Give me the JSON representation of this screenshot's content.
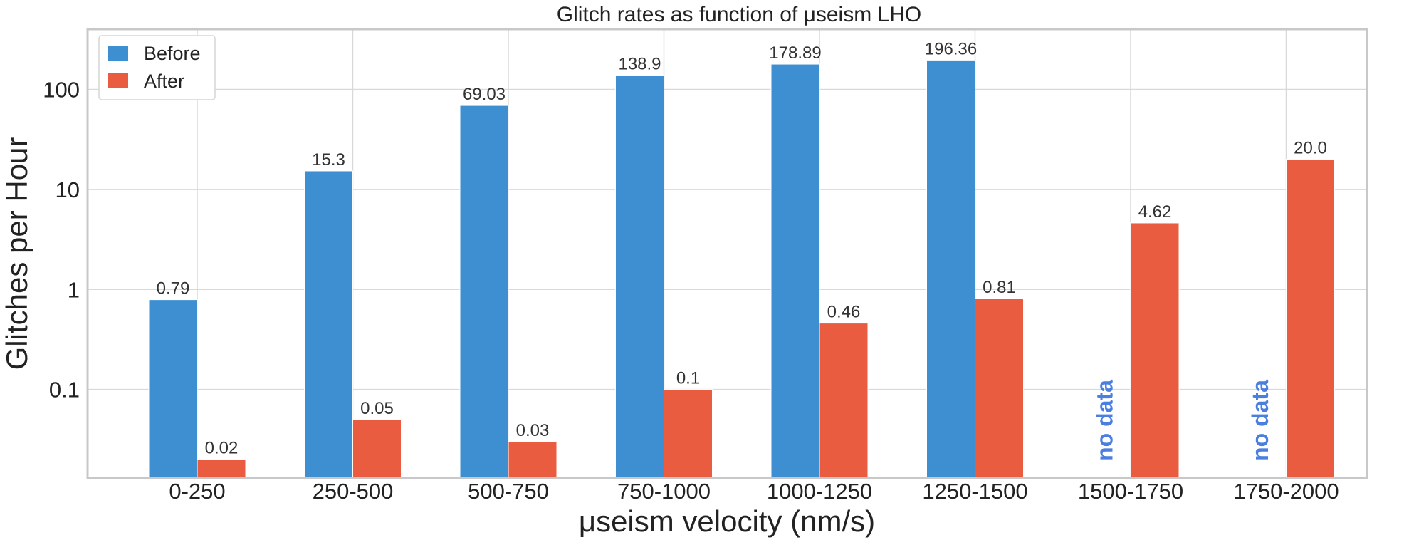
{
  "chart_data": {
    "type": "bar",
    "title": "Glitch rates as function of μseism LHO",
    "xlabel": "μseism velocity (nm/s)",
    "ylabel": "Glitches per Hour",
    "yscale": "log",
    "ylim": [
      0.013,
      400
    ],
    "yticks": [
      0.1,
      1,
      10,
      100
    ],
    "ytick_labels": [
      "0.1",
      "1",
      "10",
      "100"
    ],
    "grid": true,
    "legend_position": "top-left",
    "categories": [
      "0-250",
      "250-500",
      "500-750",
      "750-1000",
      "1000-1250",
      "1250-1500",
      "1500-1750",
      "1750-2000"
    ],
    "series": [
      {
        "name": "Before",
        "color": "#3d8fd1",
        "values": [
          0.79,
          15.3,
          69.03,
          138.9,
          178.89,
          196.36,
          null,
          null
        ],
        "labels": [
          "0.79",
          "15.3",
          "69.03",
          "138.9",
          "178.89",
          "196.36",
          null,
          null
        ]
      },
      {
        "name": "After",
        "color": "#e95c3f",
        "values": [
          0.02,
          0.05,
          0.03,
          0.1,
          0.46,
          0.81,
          4.62,
          20.0
        ],
        "labels": [
          "0.02",
          "0.05",
          "0.03",
          "0.1",
          "0.46",
          "0.81",
          "4.62",
          "20.0"
        ]
      }
    ],
    "annotations": [
      {
        "text": "no data",
        "category": "1500-1750",
        "series": "Before"
      },
      {
        "text": "no data",
        "category": "1750-2000",
        "series": "Before"
      }
    ]
  }
}
